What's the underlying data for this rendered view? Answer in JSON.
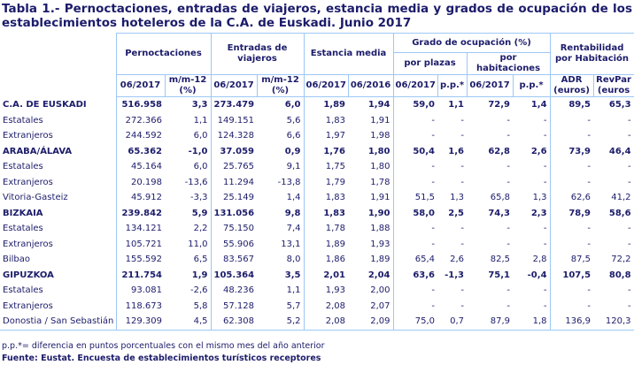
{
  "title": "Tabla 1.- Pernoctaciones, entradas de viajeros, estancia media y grados de ocupación de los establecimientos hoteleros de la C.A. de Euskadi. Junio 2017",
  "headers": {
    "pernoctaciones": "Pernoctaciones",
    "entradas": "Entradas de viajeros",
    "estancia": "Estancia media",
    "grado": "Grado de ocupación (%)",
    "plazas": "por plazas",
    "habitaciones": "por habitaciones",
    "rentabilidad": "Rentabilidad por Habitación",
    "sub": [
      "06/2017",
      "m/m-12 (%)",
      "06/2017",
      "m/m-12 (%)",
      "06/2017",
      "06/2016",
      "06/2017",
      "p.p.*",
      "06/2017",
      "p.p.*",
      "ADR (euros)",
      "RevPar (euros"
    ]
  },
  "rows": [
    {
      "label": "C.A. DE EUSKADI",
      "bold": true,
      "v": [
        "516.958",
        "3,3",
        "273.479",
        "6,0",
        "1,89",
        "1,94",
        "59,0",
        "1,1",
        "72,9",
        "1,4",
        "89,5",
        "65,3"
      ]
    },
    {
      "label": "Estatales",
      "v": [
        "272.366",
        "1,1",
        "149.151",
        "5,6",
        "1,83",
        "1,91",
        "-",
        "-",
        "-",
        "-",
        "-",
        "-"
      ]
    },
    {
      "label": "Extranjeros",
      "v": [
        "244.592",
        "6,0",
        "124.328",
        "6,6",
        "1,97",
        "1,98",
        "-",
        "-",
        "-",
        "-",
        "-",
        "-"
      ]
    },
    {
      "label": "ARABA/ÁLAVA",
      "bold": true,
      "v": [
        "65.362",
        "-1,0",
        "37.059",
        "0,9",
        "1,76",
        "1,80",
        "50,4",
        "1,6",
        "62,8",
        "2,6",
        "73,9",
        "46,4"
      ]
    },
    {
      "label": "Estatales",
      "v": [
        "45.164",
        "6,0",
        "25.765",
        "9,1",
        "1,75",
        "1,80",
        "-",
        "-",
        "-",
        "-",
        "-",
        "-"
      ]
    },
    {
      "label": "Extranjeros",
      "v": [
        "20.198",
        "-13,6",
        "11.294",
        "-13,8",
        "1,79",
        "1,78",
        "-",
        "-",
        "-",
        "-",
        "-",
        "-"
      ]
    },
    {
      "label": "Vitoria-Gasteiz",
      "v": [
        "45.912",
        "-3,3",
        "25.149",
        "1,4",
        "1,83",
        "1,91",
        "51,5",
        "1,3",
        "65,8",
        "1,3",
        "62,6",
        "41,2"
      ]
    },
    {
      "label": "BIZKAIA",
      "bold": true,
      "v": [
        "239.842",
        "5,9",
        "131.056",
        "9,8",
        "1,83",
        "1,90",
        "58,0",
        "2,5",
        "74,3",
        "2,3",
        "78,9",
        "58,6"
      ]
    },
    {
      "label": "Estatales",
      "v": [
        "134.121",
        "2,2",
        "75.150",
        "7,4",
        "1,78",
        "1,88",
        "-",
        "-",
        "-",
        "-",
        "-",
        "-"
      ]
    },
    {
      "label": "Extranjeros",
      "v": [
        "105.721",
        "11,0",
        "55.906",
        "13,1",
        "1,89",
        "1,93",
        "-",
        "-",
        "-",
        "-",
        "-",
        "-"
      ]
    },
    {
      "label": "Bilbao",
      "v": [
        "155.592",
        "6,5",
        "83.567",
        "8,0",
        "1,86",
        "1,89",
        "65,4",
        "2,6",
        "82,5",
        "2,8",
        "87,5",
        "72,2"
      ]
    },
    {
      "label": "GIPUZKOA",
      "bold": true,
      "v": [
        "211.754",
        "1,9",
        "105.364",
        "3,5",
        "2,01",
        "2,04",
        "63,6",
        "-1,3",
        "75,1",
        "-0,4",
        "107,5",
        "80,8"
      ]
    },
    {
      "label": "Estatales",
      "v": [
        "93.081",
        "-2,6",
        "48.236",
        "1,1",
        "1,93",
        "2,00",
        "-",
        "-",
        "-",
        "-",
        "-",
        "-"
      ]
    },
    {
      "label": "Extranjeros",
      "v": [
        "118.673",
        "5,8",
        "57.128",
        "5,7",
        "2,08",
        "2,07",
        "-",
        "-",
        "-",
        "-",
        "-",
        "-"
      ]
    },
    {
      "label": "Donostia / San Sebastián",
      "v": [
        "129.309",
        "4,5",
        "62.308",
        "5,2",
        "2,08",
        "2,09",
        "75,0",
        "0,7",
        "87,9",
        "1,8",
        "136,9",
        "120,3"
      ]
    }
  ],
  "footnote": "p.p.*= diferencia en puntos porcentuales con el mismo mes del año anterior",
  "source": "Fuente: Eustat. Encuesta de establecimientos turísticos receptores"
}
